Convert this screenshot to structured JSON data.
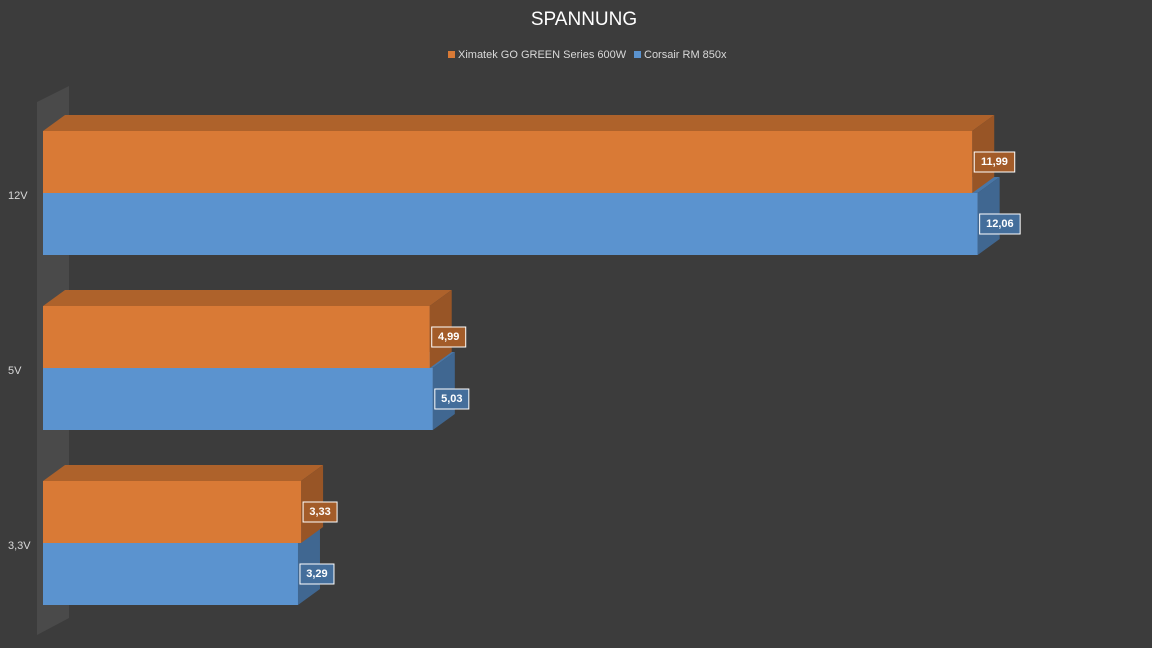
{
  "chart_data": {
    "type": "bar3d",
    "orientation": "horizontal",
    "title": "SPANNUNG",
    "categories": [
      "12V",
      "5V",
      "3,3V"
    ],
    "series": [
      {
        "name": "Ximatek GO GREEN Series 600W",
        "color": "#d97a36",
        "values": [
          11.99,
          4.99,
          3.33
        ],
        "value_labels": [
          "11,99",
          "4,99",
          "3,33"
        ]
      },
      {
        "name": "Corsair RM 850x",
        "color": "#5b93cf",
        "values": [
          12.06,
          5.03,
          3.29
        ],
        "value_labels": [
          "12,06",
          "5,03",
          "3,29"
        ]
      }
    ],
    "xlim": [
      0,
      14
    ],
    "legend": "top"
  }
}
